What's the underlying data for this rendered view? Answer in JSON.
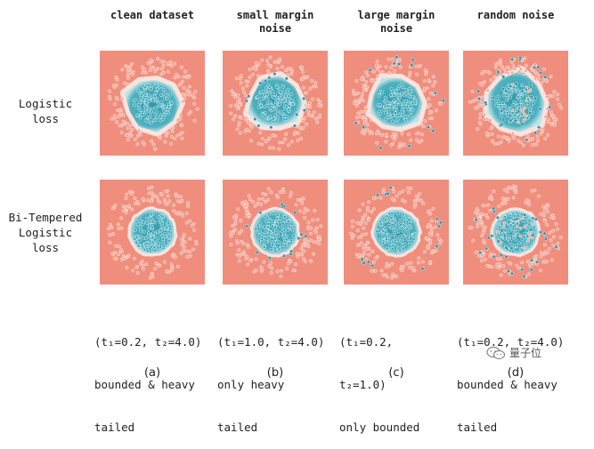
{
  "columns": [
    {
      "title": "clean dataset"
    },
    {
      "title": "small margin\nnoise"
    },
    {
      "title": "large margin\nnoise"
    },
    {
      "title": "random noise"
    }
  ],
  "rows": [
    {
      "label": "Logistic\nloss"
    },
    {
      "label": "Bi-Tempered\nLogistic\nloss"
    }
  ],
  "captions": [
    "(t1=0.2, t2=4.0)\nbounded & heavy\ntailed",
    "(t1=1.0, t2=4.0)\nonly heavy\ntailed",
    "(t1=0.2,\nt2=1.0)\nonly bounded",
    "(t1=0.2, t2=4.0)\nbounded & heavy\ntailed"
  ],
  "caption_lines": [
    [
      "(t₁=0.2, t₂=4.0)",
      "bounded & heavy",
      "tailed"
    ],
    [
      "(t₁=1.0, t₂=4.0)",
      "only heavy",
      "tailed"
    ],
    [
      "(t₁=0.2,",
      "t₂=1.0)",
      "only bounded"
    ],
    [
      "(t₁=0.2, t₂=4.0)",
      "bounded & heavy",
      "tailed"
    ]
  ],
  "subfig_labels": [
    "(a)",
    "(b)",
    "(c)",
    "(d)"
  ],
  "watermark": {
    "text": "量子位",
    "icon": "wechat-icon"
  },
  "colors": {
    "background_class": "#f08e7e",
    "inner_class": "#2f9aaa",
    "boundary": "#ffffff"
  }
}
